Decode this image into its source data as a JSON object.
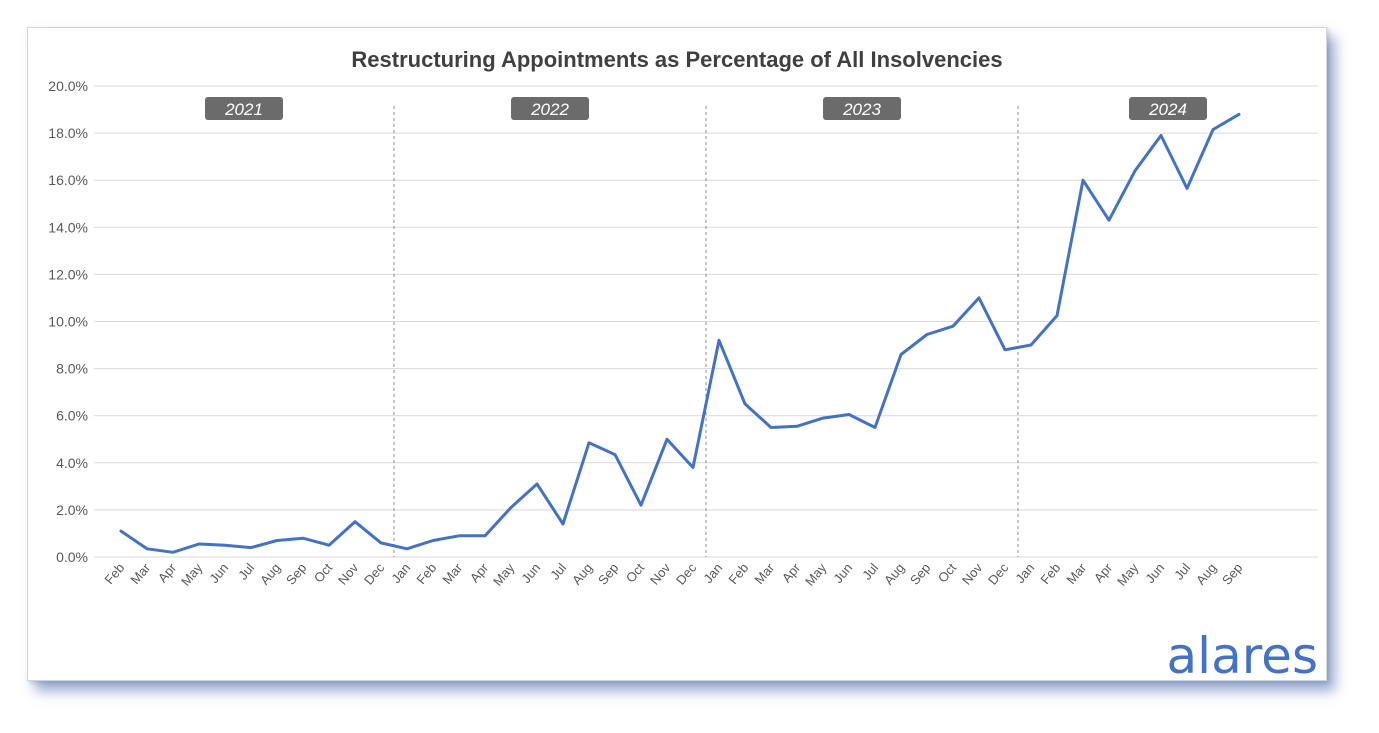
{
  "chart_data": {
    "type": "line",
    "title": "Restructuring Appointments as Percentage of All Insolvencies",
    "xlabel": "",
    "ylabel": "",
    "ylim": [
      0,
      20
    ],
    "yticks": [
      "0.0%",
      "2.0%",
      "4.0%",
      "6.0%",
      "8.0%",
      "10.0%",
      "12.0%",
      "14.0%",
      "16.0%",
      "18.0%",
      "20.0%"
    ],
    "grid": true,
    "year_labels": [
      "2021",
      "2022",
      "2023",
      "2024"
    ],
    "categories": [
      "Feb",
      "Mar",
      "Apr",
      "May",
      "Jun",
      "Jul",
      "Aug",
      "Sep",
      "Oct",
      "Nov",
      "Dec",
      "Jan",
      "Feb",
      "Mar",
      "Apr",
      "May",
      "Jun",
      "Jul",
      "Aug",
      "Sep",
      "Oct",
      "Nov",
      "Dec",
      "Jan",
      "Feb",
      "Mar",
      "Apr",
      "May",
      "Jun",
      "Jul",
      "Aug",
      "Sep",
      "Oct",
      "Nov",
      "Dec",
      "Jan",
      "Feb",
      "Mar",
      "Apr",
      "May",
      "Jun",
      "Jul",
      "Aug",
      "Sep"
    ],
    "series": [
      {
        "color": "#4472c4",
        "values": [
          1.1,
          0.35,
          0.2,
          0.55,
          0.5,
          0.4,
          0.7,
          0.8,
          0.5,
          1.5,
          0.6,
          0.35,
          0.7,
          0.9,
          0.9,
          2.1,
          3.1,
          1.4,
          4.85,
          4.35,
          2.2,
          5.0,
          3.8,
          9.2,
          6.5,
          5.5,
          5.55,
          5.9,
          6.05,
          5.5,
          8.6,
          9.45,
          9.8,
          11.0,
          8.8,
          9.0,
          10.25,
          16.0,
          14.3,
          16.4,
          17.9,
          15.65,
          18.15,
          18.8
        ]
      }
    ]
  },
  "branding": {
    "logo_text": "alares",
    "logo_color": "#4472c4"
  }
}
